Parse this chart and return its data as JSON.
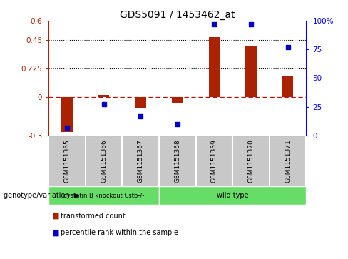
{
  "title": "GDS5091 / 1453462_at",
  "samples": [
    "GSM1151365",
    "GSM1151366",
    "GSM1151367",
    "GSM1151368",
    "GSM1151369",
    "GSM1151370",
    "GSM1151371"
  ],
  "transformed_count": [
    -0.27,
    0.02,
    -0.09,
    -0.05,
    0.47,
    0.4,
    0.17
  ],
  "percentile_rank": [
    7,
    27,
    17,
    10,
    97,
    97,
    77
  ],
  "ylim_left": [
    -0.3,
    0.6
  ],
  "ylim_right": [
    0,
    100
  ],
  "yticks_left": [
    -0.3,
    0.0,
    0.225,
    0.45,
    0.6
  ],
  "ytick_labels_left": [
    "-0.3",
    "0",
    "0.225",
    "0.45",
    "0.6"
  ],
  "yticks_right": [
    0,
    25,
    50,
    75,
    100
  ],
  "ytick_labels_right": [
    "0",
    "25",
    "50",
    "75",
    "100%"
  ],
  "hlines": [
    0.225,
    0.45
  ],
  "bar_color": "#AA2200",
  "dot_color": "#0000CC",
  "zero_line_color": "#CC0000",
  "groups": [
    {
      "label": "cystatin B knockout Cstb-/-",
      "span": [
        0,
        2
      ],
      "color": "#66DD66"
    },
    {
      "label": "wild type",
      "span": [
        3,
        6
      ],
      "color": "#66DD66"
    }
  ],
  "legend_label_red": "transformed count",
  "legend_label_blue": "percentile rank within the sample",
  "genotype_label": "genotype/variation",
  "bar_width": 0.3,
  "dot_size": 25,
  "sample_bg": "#C8C8C8",
  "sample_border": "#888888"
}
